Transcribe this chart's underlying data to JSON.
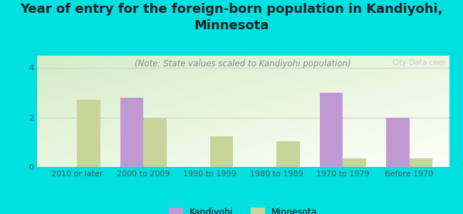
{
  "title": "Year of entry for the foreign-born population in Kandiyohi,\nMinnesota",
  "subtitle": "(Note: State values scaled to Kandiyohi population)",
  "categories": [
    "2010 or later",
    "2000 to 2009",
    "1990 to 1999",
    "1980 to 1989",
    "1970 to 1979",
    "Before 1970"
  ],
  "kandiyohi_values": [
    0,
    2.8,
    0,
    0,
    3.0,
    2.0
  ],
  "minnesota_values": [
    2.7,
    1.95,
    1.25,
    1.05,
    0.35,
    0.35
  ],
  "kandiyohi_color": "#c099d4",
  "minnesota_color": "#c8d49a",
  "background_color": "#00e0e0",
  "plot_bg_top_left": "#d4edc8",
  "plot_bg_bottom_right": "#fffff8",
  "ylim": [
    0,
    4.5
  ],
  "yticks": [
    0,
    2,
    4
  ],
  "bar_width": 0.35,
  "title_fontsize": 13,
  "subtitle_fontsize": 8.5,
  "tick_fontsize": 8,
  "legend_fontsize": 9,
  "watermark": "City-Data.com"
}
